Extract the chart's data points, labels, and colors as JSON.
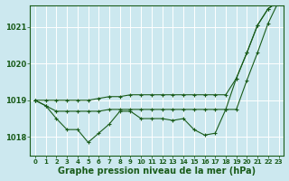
{
  "bg_color": "#cce8ef",
  "grid_color": "#ffffff",
  "line_color": "#1a5c1a",
  "title": "Graphe pression niveau de la mer (hPa)",
  "title_fontsize": 7,
  "tick_fontsize": 5,
  "ylim": [
    1017.5,
    1021.6
  ],
  "yticks": [
    1018,
    1019,
    1020,
    1021
  ],
  "xticks": [
    0,
    1,
    2,
    3,
    4,
    5,
    6,
    7,
    8,
    9,
    10,
    11,
    12,
    13,
    14,
    15,
    16,
    17,
    18,
    19,
    20,
    21,
    22,
    23
  ],
  "series_upper_x": [
    0,
    1,
    2,
    3,
    4,
    5,
    6,
    7,
    8,
    9,
    10,
    11,
    12,
    13,
    14,
    15,
    16,
    17,
    18,
    19,
    20,
    21,
    22,
    23
  ],
  "series_upper_y": [
    1019.0,
    1019.0,
    1019.0,
    1019.0,
    1019.0,
    1019.0,
    1019.05,
    1019.1,
    1019.1,
    1019.15,
    1019.15,
    1019.15,
    1019.15,
    1019.15,
    1019.15,
    1019.15,
    1019.15,
    1019.15,
    1019.15,
    1019.6,
    1020.3,
    1021.05,
    1021.5,
    1021.7
  ],
  "series_mid_x": [
    0,
    1,
    2,
    3,
    4,
    5,
    6,
    7,
    8,
    9,
    10,
    11,
    12,
    13,
    14,
    15,
    16,
    17,
    18,
    19,
    20,
    21,
    22,
    23
  ],
  "series_mid_y": [
    1019.0,
    1018.85,
    1018.7,
    1018.7,
    1018.7,
    1018.7,
    1018.7,
    1018.75,
    1018.75,
    1018.75,
    1018.75,
    1018.75,
    1018.75,
    1018.75,
    1018.75,
    1018.75,
    1018.75,
    1018.75,
    1018.75,
    1018.75,
    1019.55,
    1020.3,
    1021.1,
    1021.7
  ],
  "series_low_x": [
    0,
    1,
    2,
    3,
    4,
    5,
    6,
    7,
    8,
    9,
    10,
    11,
    12,
    13,
    14,
    15,
    16,
    17,
    18,
    19,
    20,
    21,
    22,
    23
  ],
  "series_low_y": [
    1019.0,
    1018.85,
    1018.5,
    1018.2,
    1018.2,
    1017.85,
    1018.1,
    1018.35,
    1018.7,
    1018.7,
    1018.5,
    1018.5,
    1018.5,
    1018.45,
    1018.5,
    1018.2,
    1018.05,
    1018.1,
    1018.75,
    1019.6,
    1020.3,
    1021.05,
    1021.5,
    1021.7
  ]
}
